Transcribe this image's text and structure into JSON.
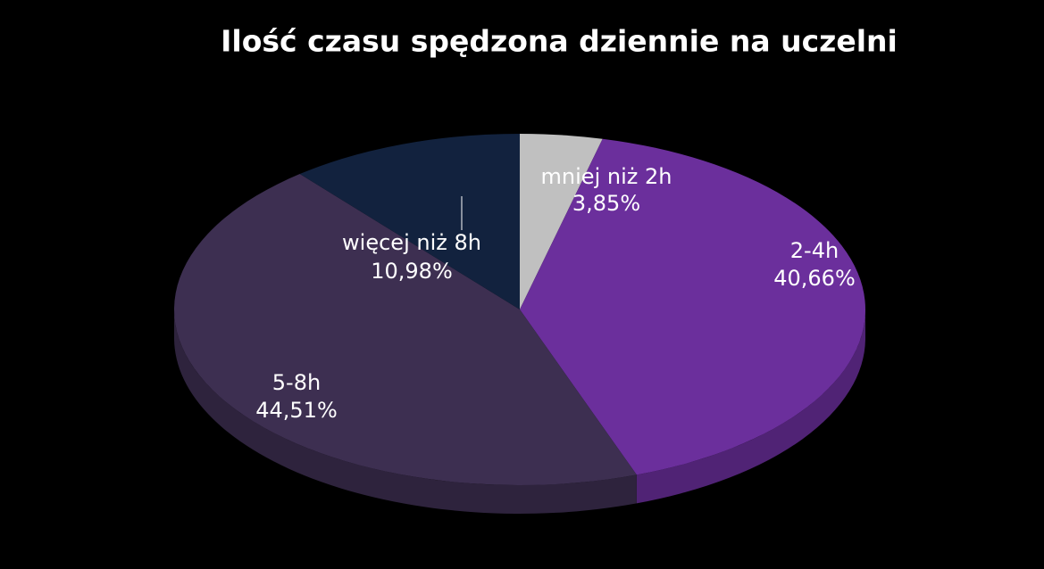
{
  "chart_data": {
    "type": "pie",
    "title": "Ilość czasu spędzona dziennie na uczelni",
    "categories": [
      "mniej niż 2h",
      "2-4h",
      "5-8h",
      "więcej niż 8h"
    ],
    "values": [
      3.85,
      40.66,
      44.51,
      10.98
    ],
    "value_labels": [
      "3,85%",
      "40,66%",
      "44,51%",
      "10,98%"
    ],
    "colors": [
      "#c0c0c0",
      "#6b2f9c",
      "#3d2f51",
      "#12223e"
    ]
  }
}
